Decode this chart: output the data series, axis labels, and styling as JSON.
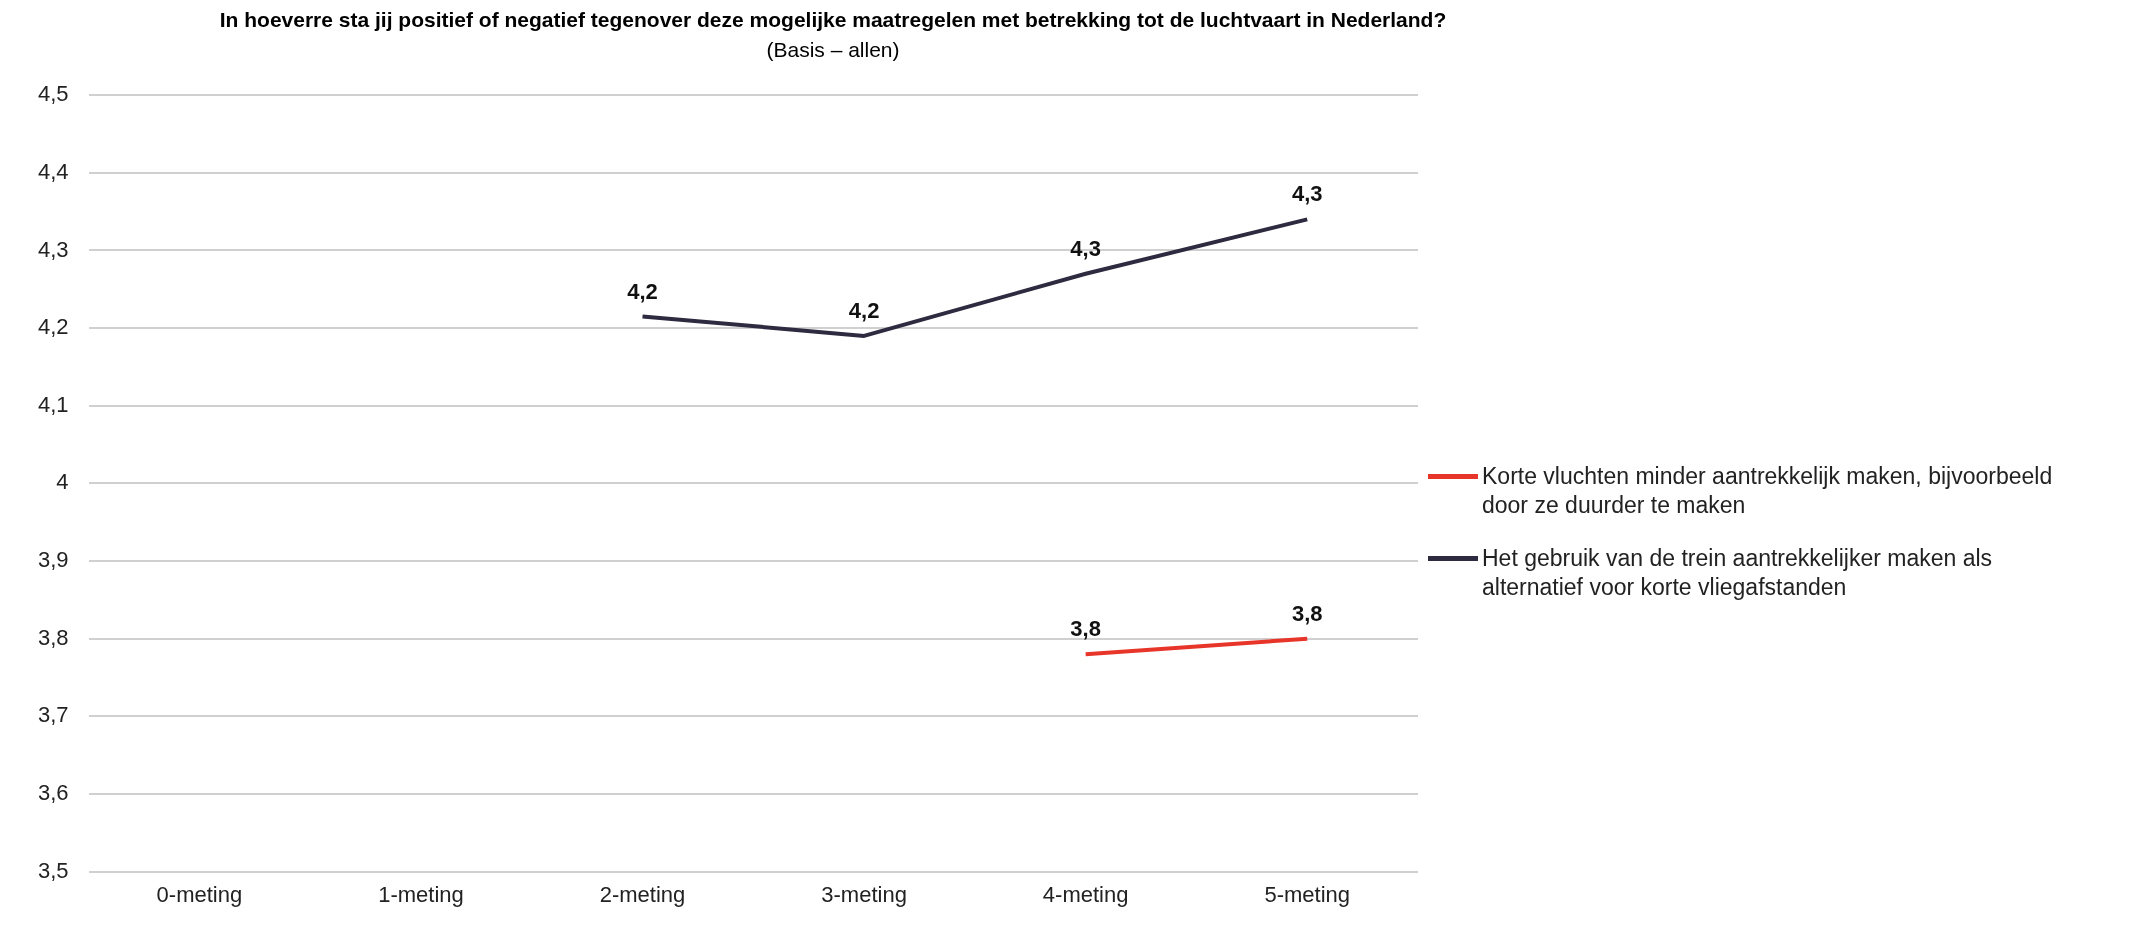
{
  "chart_data": {
    "type": "line",
    "title": "In hoeverre sta jij positief of negatief tegenover deze mogelijke maatregelen met betrekking tot de luchtvaart in Nederland?",
    "subtitle": "(Basis – allen)",
    "categories": [
      "0-meting",
      "1-meting",
      "2-meting",
      "3-meting",
      "4-meting",
      "5-meting"
    ],
    "series": [
      {
        "name": "Korte vluchten minder aantrekkelijk maken, bijvoorbeeld door ze duurder te maken",
        "color": "#e8352a",
        "values": [
          null,
          null,
          null,
          null,
          3.78,
          3.8
        ],
        "value_labels": [
          null,
          null,
          null,
          null,
          "3,8",
          "3,8"
        ]
      },
      {
        "name": "Het gebruik van de trein aantrekkelijker maken als alternatief voor korte vliegafstanden",
        "color": "#2e2a3f",
        "values": [
          null,
          null,
          4.215,
          4.19,
          4.27,
          4.34
        ],
        "value_labels": [
          null,
          null,
          "4,2",
          "4,2",
          "4,3",
          "4,3"
        ]
      }
    ],
    "ylim": [
      3.5,
      4.5
    ],
    "yticks": [
      {
        "value": 3.5,
        "label": "3,5"
      },
      {
        "value": 3.6,
        "label": "3,6"
      },
      {
        "value": 3.7,
        "label": "3,7"
      },
      {
        "value": 3.8,
        "label": "3,8"
      },
      {
        "value": 3.9,
        "label": "3,9"
      },
      4,
      {
        "value": 4.1,
        "label": "4,1"
      },
      {
        "value": 4.2,
        "label": "4,2"
      },
      {
        "value": 4.3,
        "label": "4,3"
      },
      {
        "value": 4.4,
        "label": "4,4"
      },
      {
        "value": 4.5,
        "label": "4,5"
      }
    ],
    "grid": "y",
    "legend": "right",
    "marker": "none",
    "line_style": "solid"
  }
}
